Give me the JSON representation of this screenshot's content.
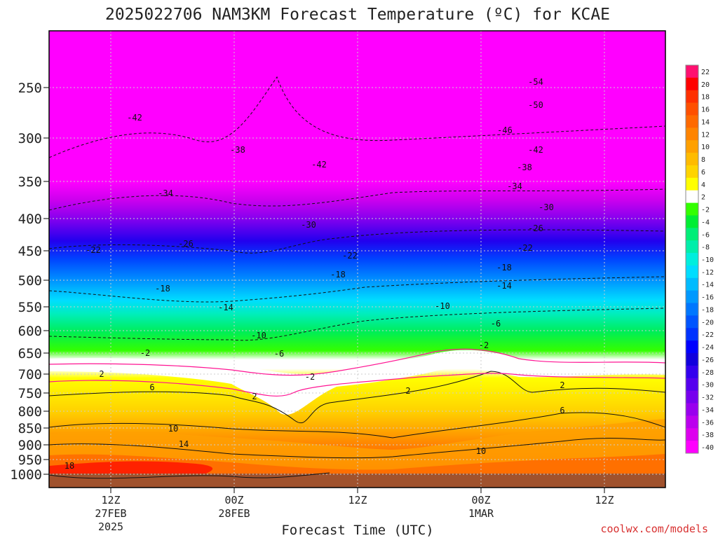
{
  "chart_data": {
    "type": "heatmap",
    "title": "2025022706 NAM3KM Forecast Temperature (ºC) for KCAE",
    "xlabel": "Forecast Time (UTC)",
    "credit": "coolwx.com/models",
    "y_ticks": [
      "250",
      "300",
      "350",
      "400",
      "450",
      "500",
      "550",
      "600",
      "650",
      "700",
      "750",
      "800",
      "850",
      "900",
      "950",
      "1000"
    ],
    "x_ticks": [
      {
        "line1": "12Z",
        "line2": "27FEB",
        "line3": "2025"
      },
      {
        "line1": "00Z",
        "line2": "28FEB",
        "line3": ""
      },
      {
        "line1": "12Z",
        "line2": "",
        "line3": ""
      },
      {
        "line1": "00Z",
        "line2": "1MAR",
        "line3": ""
      },
      {
        "line1": "12Z",
        "line2": "",
        "line3": ""
      }
    ],
    "colorbar_labels": [
      "22",
      "20",
      "18",
      "16",
      "14",
      "12",
      "10",
      "8",
      "6",
      "4",
      "2",
      "-2",
      "-4",
      "-6",
      "-8",
      "-10",
      "-12",
      "-14",
      "-16",
      "-18",
      "-20",
      "-22",
      "-24",
      "-26",
      "-28",
      "-30",
      "-32",
      "-34",
      "-36",
      "-38",
      "-40"
    ],
    "colorbar_colors": [
      "#ff1070",
      "#ff0000",
      "#ff3000",
      "#ff5000",
      "#ff6a00",
      "#ff8400",
      "#ffa000",
      "#ffbb00",
      "#ffd400",
      "#ffff00",
      "#ffffff",
      "#33ff00",
      "#00ee33",
      "#00ee77",
      "#00eeaa",
      "#00eedd",
      "#00ddff",
      "#00bbff",
      "#0099ff",
      "#0077ff",
      "#0055ff",
      "#0033ff",
      "#0000ff",
      "#1100dd",
      "#3300ee",
      "#5500ee",
      "#7700ee",
      "#9900ee",
      "#bb00ee",
      "#dd00ee",
      "#ff00ff"
    ],
    "contour_labels": [
      {
        "text": "-54"
      },
      {
        "text": "-50"
      },
      {
        "text": "-46"
      },
      {
        "text": "-42"
      },
      {
        "text": "-42"
      },
      {
        "text": "-42"
      },
      {
        "text": "-38"
      },
      {
        "text": "-38"
      },
      {
        "text": "-34"
      },
      {
        "text": "-34"
      },
      {
        "text": "-30"
      },
      {
        "text": "-30"
      },
      {
        "text": "-26"
      },
      {
        "text": "-26"
      },
      {
        "text": "-22"
      },
      {
        "text": "-22"
      },
      {
        "text": "-22"
      },
      {
        "text": "-18"
      },
      {
        "text": "-18"
      },
      {
        "text": "-18"
      },
      {
        "text": "-14"
      },
      {
        "text": "-14"
      },
      {
        "text": "-10"
      },
      {
        "text": "-10"
      },
      {
        "text": "-6"
      },
      {
        "text": "-6"
      },
      {
        "text": "-2"
      },
      {
        "text": "-2"
      },
      {
        "text": "-2"
      },
      {
        "text": "2"
      },
      {
        "text": "2"
      },
      {
        "text": "2"
      },
      {
        "text": "2"
      },
      {
        "text": "6"
      },
      {
        "text": "6"
      },
      {
        "text": "10"
      },
      {
        "text": "10"
      },
      {
        "text": "14"
      },
      {
        "text": "18"
      }
    ]
  }
}
